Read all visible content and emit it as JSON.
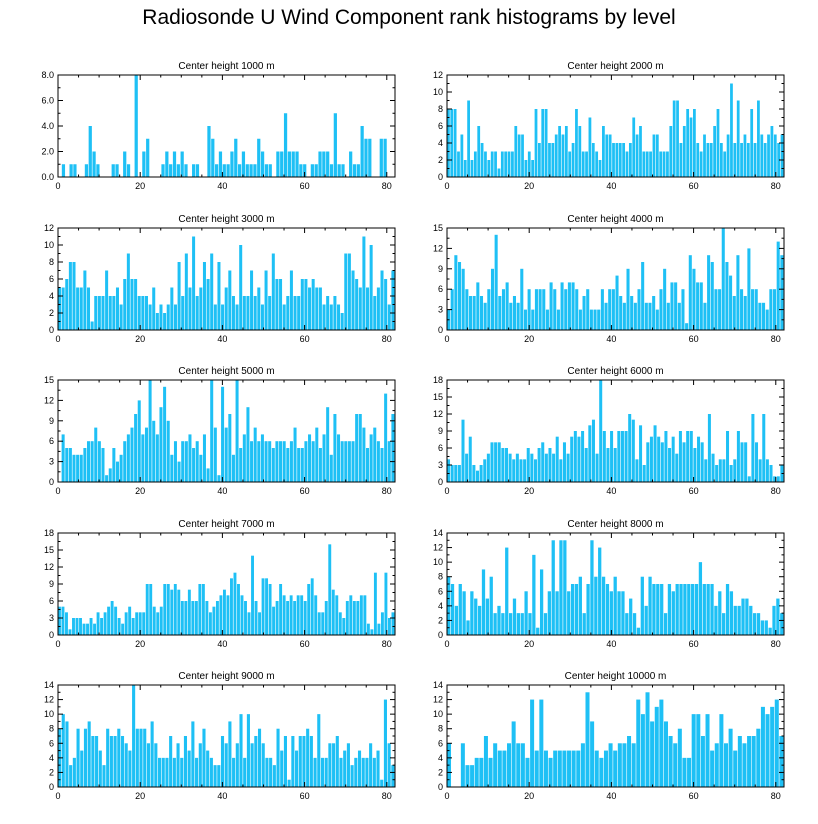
{
  "title": "Radiosonde U Wind Component rank histograms by level",
  "colors": {
    "bar": "#1ec0f5",
    "axis": "#000000"
  },
  "chart_data": [
    {
      "type": "bar",
      "title": "Center height 1000 m",
      "xlim": [
        0,
        82
      ],
      "ylim": [
        0,
        8
      ],
      "xticks": [
        0,
        20,
        40,
        60,
        80
      ],
      "yticks": [
        0,
        2,
        4,
        6,
        8
      ],
      "ytick_labels": [
        "0.0",
        "2.0",
        "4.0",
        "6.0",
        "8.0"
      ],
      "values": [
        0,
        1,
        0,
        1,
        1,
        0,
        0,
        1,
        4,
        2,
        1,
        0,
        0,
        0,
        1,
        1,
        0,
        2,
        1,
        0,
        8,
        0,
        2,
        3,
        0,
        0,
        0,
        1,
        2,
        1,
        2,
        1,
        2,
        1,
        0,
        1,
        1,
        0,
        0,
        4,
        3,
        1,
        2,
        1,
        1,
        2,
        3,
        1,
        2,
        1,
        1,
        1,
        3,
        2,
        1,
        1,
        0,
        2,
        2,
        5,
        2,
        2,
        2,
        1,
        1,
        0,
        1,
        1,
        2,
        2,
        2,
        1,
        5,
        1,
        1,
        0,
        2,
        1,
        1,
        4,
        3,
        3,
        0,
        0,
        3,
        3,
        0,
        0
      ]
    },
    {
      "type": "bar",
      "title": "Center height 2000 m",
      "xlim": [
        0,
        82
      ],
      "ylim": [
        0,
        12
      ],
      "xticks": [
        0,
        20,
        40,
        60,
        80
      ],
      "yticks": [
        0,
        2,
        4,
        6,
        8,
        10,
        12
      ],
      "ytick_labels": [
        "0",
        "2",
        "4",
        "6",
        "8",
        "10",
        "12"
      ],
      "values": [
        8,
        8,
        8,
        3,
        5,
        2,
        9,
        2,
        3,
        6,
        4,
        3,
        2,
        3,
        3,
        1,
        3,
        3,
        3,
        3,
        6,
        5,
        5,
        2,
        3,
        2,
        8,
        4,
        8,
        8,
        4,
        4,
        5,
        6,
        5,
        6,
        3,
        4,
        8,
        6,
        3,
        3,
        7,
        4,
        3,
        2,
        6,
        5,
        5,
        4,
        4,
        4,
        4,
        3,
        4,
        7,
        5,
        6,
        3,
        3,
        3,
        5,
        5,
        3,
        3,
        3,
        6,
        9,
        9,
        4,
        6,
        8,
        7,
        8,
        4,
        3,
        5,
        4,
        4,
        6,
        8,
        4,
        3,
        5,
        11,
        4,
        9,
        4,
        5,
        4,
        8,
        4,
        9,
        5,
        4,
        5,
        6,
        5,
        4,
        5
      ]
    },
    {
      "type": "bar",
      "title": "Center height 3000 m",
      "xlim": [
        0,
        82
      ],
      "ylim": [
        0,
        12
      ],
      "xticks": [
        0,
        20,
        40,
        60,
        80
      ],
      "yticks": [
        0,
        2,
        4,
        6,
        8,
        10,
        12
      ],
      "ytick_labels": [
        "0",
        "2",
        "4",
        "6",
        "8",
        "10",
        "12"
      ],
      "values": [
        5,
        5,
        6,
        8,
        8,
        5,
        5,
        7,
        5,
        1,
        4,
        4,
        4,
        7,
        4,
        4,
        5,
        3,
        6,
        9,
        6,
        6,
        4,
        4,
        4,
        3,
        5,
        2,
        3,
        2,
        3,
        5,
        3,
        8,
        4,
        9,
        5,
        11,
        4,
        5,
        8,
        6,
        9,
        3,
        8,
        3,
        5,
        7,
        4,
        3,
        10,
        4,
        4,
        7,
        4,
        5,
        3,
        7,
        4,
        9,
        6,
        6,
        3,
        4,
        7,
        4,
        4,
        6,
        6,
        5,
        6,
        5,
        5,
        3,
        4,
        3,
        4,
        3,
        2,
        9,
        9,
        7,
        6,
        5,
        11,
        5,
        10,
        4,
        5,
        7,
        6,
        3,
        7
      ]
    },
    {
      "type": "bar",
      "title": "Center height 4000 m",
      "xlim": [
        0,
        82
      ],
      "ylim": [
        0,
        15
      ],
      "xticks": [
        0,
        20,
        40,
        60,
        80
      ],
      "yticks": [
        0,
        3,
        6,
        9,
        12,
        15
      ],
      "ytick_labels": [
        "0",
        "3",
        "6",
        "9",
        "12",
        "15"
      ],
      "values": [
        3,
        6,
        11,
        10,
        9,
        6,
        5,
        5,
        7,
        5,
        4,
        6,
        9,
        14,
        5,
        6,
        7,
        4,
        5,
        4,
        9,
        3,
        6,
        3,
        6,
        6,
        6,
        3,
        7,
        6,
        3,
        7,
        6,
        7,
        7,
        6,
        3,
        5,
        6,
        3,
        3,
        3,
        6,
        4,
        6,
        6,
        8,
        5,
        4,
        9,
        5,
        4,
        6,
        10,
        4,
        4,
        5,
        3,
        6,
        9,
        4,
        7,
        7,
        4,
        6,
        1,
        11,
        9,
        7,
        7,
        4,
        11,
        10,
        6,
        6,
        15,
        10,
        8,
        5,
        11,
        6,
        5,
        12,
        6,
        6,
        4,
        4,
        3,
        6,
        6,
        13,
        11
      ]
    },
    {
      "type": "bar",
      "title": "Center height 5000 m",
      "xlim": [
        0,
        82
      ],
      "ylim": [
        0,
        15
      ],
      "xticks": [
        0,
        20,
        40,
        60,
        80
      ],
      "yticks": [
        0,
        3,
        6,
        9,
        12,
        15
      ],
      "ytick_labels": [
        "0",
        "3",
        "6",
        "9",
        "12",
        "15"
      ],
      "values": [
        0,
        7,
        5,
        5,
        4,
        4,
        4,
        5,
        6,
        6,
        8,
        6,
        5,
        1,
        2,
        5,
        3,
        4,
        6,
        7,
        8,
        10,
        12,
        7,
        8,
        15,
        9,
        7,
        11,
        14,
        9,
        4,
        6,
        3,
        6,
        6,
        7,
        5,
        6,
        4,
        7,
        2,
        15,
        8,
        1,
        14,
        8,
        10,
        4,
        15,
        5,
        7,
        11,
        6,
        8,
        6,
        7,
        6,
        6,
        5,
        6,
        6,
        6,
        5,
        6,
        8,
        5,
        5,
        6,
        7,
        6,
        8,
        5,
        7,
        11,
        4,
        10,
        7,
        6,
        6,
        6,
        6,
        10,
        10,
        8,
        5,
        7,
        8,
        6,
        5,
        13,
        6,
        10
      ]
    },
    {
      "type": "bar",
      "title": "Center height 6000 m",
      "xlim": [
        0,
        82
      ],
      "ylim": [
        0,
        18
      ],
      "xticks": [
        0,
        20,
        40,
        60,
        80
      ],
      "yticks": [
        0,
        3,
        6,
        9,
        12,
        15,
        18
      ],
      "ytick_labels": [
        "0",
        "3",
        "6",
        "9",
        "12",
        "15",
        "18"
      ],
      "values": [
        4,
        3,
        3,
        3,
        11,
        5,
        8,
        3,
        2,
        3,
        4,
        5,
        7,
        7,
        7,
        6,
        6,
        5,
        4,
        5,
        4,
        4,
        6,
        5,
        4,
        6,
        7,
        5,
        6,
        5,
        8,
        4,
        7,
        5,
        8,
        9,
        8,
        9,
        6,
        10,
        11,
        5,
        18,
        9,
        6,
        9,
        6,
        9,
        9,
        9,
        12,
        11,
        4,
        10,
        3,
        7,
        8,
        10,
        8,
        7,
        9,
        6,
        8,
        5,
        9,
        7,
        9,
        9,
        6,
        8,
        7,
        4,
        12,
        5,
        3,
        4,
        4,
        9,
        3,
        4,
        9,
        7,
        7,
        1,
        12,
        7,
        4,
        12,
        4,
        3,
        1,
        1,
        3
      ]
    },
    {
      "type": "bar",
      "title": "Center height 7000 m",
      "xlim": [
        0,
        82
      ],
      "ylim": [
        0,
        18
      ],
      "xticks": [
        0,
        20,
        40,
        60,
        80
      ],
      "yticks": [
        0,
        3,
        6,
        9,
        12,
        15,
        18
      ],
      "ytick_labels": [
        "0",
        "3",
        "6",
        "9",
        "12",
        "15",
        "18"
      ],
      "values": [
        5,
        5,
        4,
        1,
        3,
        3,
        3,
        2,
        2,
        3,
        2,
        4,
        3,
        4,
        5,
        6,
        5,
        3,
        2,
        4,
        5,
        3,
        4,
        4,
        4,
        9,
        9,
        5,
        4,
        5,
        9,
        9,
        8,
        9,
        8,
        6,
        6,
        8,
        6,
        6,
        9,
        9,
        6,
        4,
        5,
        6,
        7,
        8,
        7,
        10,
        11,
        9,
        7,
        6,
        4,
        14,
        6,
        4,
        10,
        10,
        9,
        5,
        6,
        9,
        7,
        6,
        7,
        6,
        7,
        7,
        6,
        9,
        10,
        7,
        4,
        4,
        6,
        16,
        8,
        7,
        4,
        3,
        6,
        7,
        6,
        6,
        7,
        7,
        2,
        1,
        11,
        2,
        4,
        11,
        3,
        4
      ]
    },
    {
      "type": "bar",
      "title": "Center height 8000 m",
      "xlim": [
        0,
        82
      ],
      "ylim": [
        0,
        14
      ],
      "xticks": [
        0,
        20,
        40,
        60,
        80
      ],
      "yticks": [
        0,
        2,
        4,
        6,
        8,
        10,
        12,
        14
      ],
      "ytick_labels": [
        "0",
        "2",
        "4",
        "6",
        "8",
        "10",
        "12",
        "14"
      ],
      "values": [
        8,
        7,
        4,
        7,
        6,
        2,
        6,
        5,
        4,
        9,
        5,
        8,
        3,
        4,
        3,
        12,
        3,
        5,
        3,
        3,
        6,
        3,
        11,
        1,
        9,
        3,
        6,
        13,
        6,
        13,
        13,
        6,
        7,
        7,
        8,
        3,
        7,
        13,
        8,
        12,
        8,
        7,
        6,
        8,
        6,
        6,
        3,
        5,
        3,
        1,
        8,
        4,
        8,
        7,
        7,
        7,
        3,
        7,
        6,
        7,
        7,
        7,
        7,
        7,
        7,
        10,
        7,
        7,
        7,
        4,
        6,
        3,
        7,
        6,
        4,
        4,
        5,
        5,
        4,
        3,
        3,
        2,
        2,
        1,
        4,
        5,
        3
      ]
    },
    {
      "type": "bar",
      "title": "Center height 9000 m",
      "xlim": [
        0,
        82
      ],
      "ylim": [
        0,
        14
      ],
      "xticks": [
        0,
        20,
        40,
        60,
        80
      ],
      "yticks": [
        0,
        2,
        4,
        6,
        8,
        10,
        12,
        14
      ],
      "ytick_labels": [
        "0",
        "2",
        "4",
        "6",
        "8",
        "10",
        "12",
        "14"
      ],
      "values": [
        8,
        10,
        9,
        3,
        4,
        8,
        5,
        8,
        9,
        7,
        7,
        5,
        3,
        8,
        7,
        7,
        8,
        7,
        6,
        5,
        14,
        8,
        8,
        8,
        6,
        9,
        6,
        4,
        4,
        4,
        7,
        4,
        6,
        4,
        7,
        5,
        9,
        4,
        6,
        8,
        5,
        4,
        3,
        3,
        7,
        6,
        9,
        4,
        6,
        10,
        4,
        10,
        6,
        7,
        8,
        6,
        4,
        4,
        3,
        8,
        5,
        7,
        1,
        7,
        5,
        7,
        7,
        8,
        7,
        4,
        10,
        4,
        4,
        6,
        6,
        7,
        4,
        5,
        6,
        3,
        4,
        5,
        4,
        4,
        6,
        4,
        5,
        1,
        12,
        6,
        3
      ]
    },
    {
      "type": "bar",
      "title": "Center height 10000 m",
      "xlim": [
        0,
        82
      ],
      "ylim": [
        0,
        14
      ],
      "xticks": [
        0,
        20,
        40,
        60,
        80
      ],
      "yticks": [
        0,
        2,
        4,
        6,
        8,
        10,
        12,
        14
      ],
      "ytick_labels": [
        "0",
        "2",
        "4",
        "6",
        "8",
        "10",
        "12",
        "14"
      ],
      "values": [
        6,
        0,
        0,
        6,
        3,
        3,
        4,
        4,
        7,
        4,
        6,
        5,
        5,
        6,
        9,
        6,
        6,
        4,
        12,
        5,
        12,
        5,
        4,
        5,
        5,
        5,
        5,
        5,
        5,
        6,
        13,
        9,
        5,
        4,
        5,
        6,
        5,
        6,
        6,
        7,
        6,
        12,
        10,
        13,
        9,
        11,
        12,
        9,
        7,
        6,
        8,
        4,
        4,
        10,
        10,
        7,
        10,
        5,
        6,
        10,
        6,
        8,
        5,
        7,
        6,
        7,
        7,
        8,
        11,
        10,
        11,
        12,
        7
      ]
    }
  ]
}
